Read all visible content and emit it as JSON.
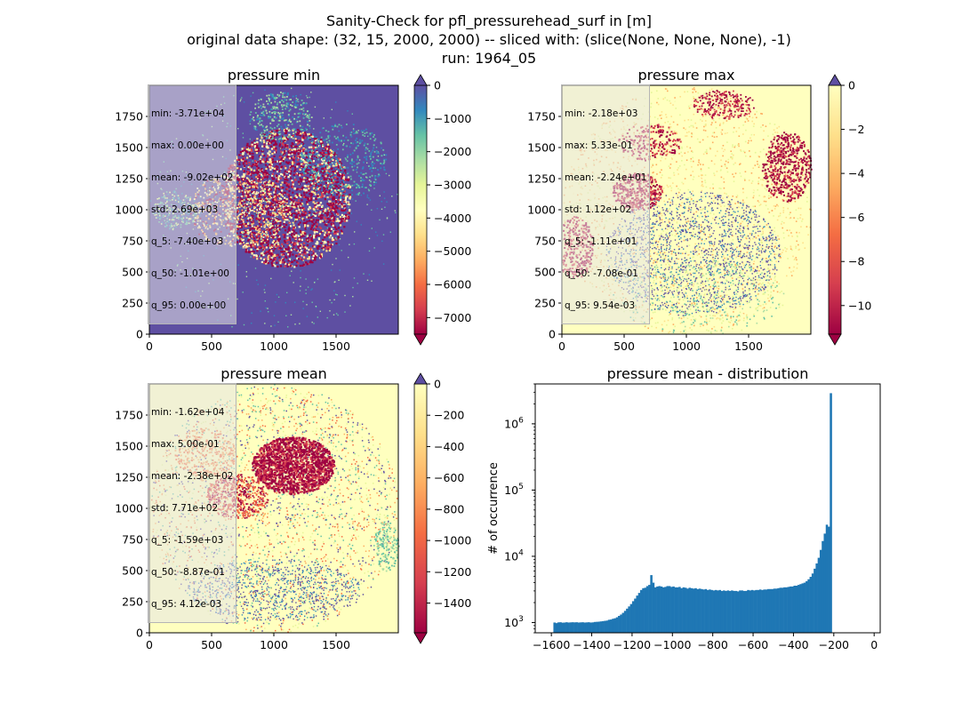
{
  "figure": {
    "title_lines": [
      "Sanity-Check for pfl_pressurehead_surf in [m]",
      "original data shape: (32, 15, 2000, 2000) -- sliced with: (slice(None, None, None), -1)",
      "run: 1964_05"
    ]
  },
  "colors": {
    "spectral": [
      "#9e0142",
      "#d53e4f",
      "#f46d43",
      "#fdae61",
      "#fee08b",
      "#ffffbf",
      "#e6f598",
      "#abdda4",
      "#66c2a5",
      "#3288bd",
      "#5e4fa2"
    ],
    "histogram_bar": "#1f77b4"
  },
  "chart_data": [
    {
      "type": "heatmap",
      "title": "pressure min",
      "xlim": [
        0,
        2000
      ],
      "ylim": [
        0,
        2000
      ],
      "xticks": [
        "0",
        "500",
        "1000",
        "1500"
      ],
      "yticks": [
        "0",
        "250",
        "500",
        "750",
        "1000",
        "1250",
        "1500",
        "1750"
      ],
      "colorbar": {
        "range": [
          -7500,
          0
        ],
        "ticks": [
          "0",
          "−1000",
          "−2000",
          "−3000",
          "−4000",
          "−5000",
          "−6000",
          "−7000"
        ],
        "extend": "both"
      },
      "stats": [
        "min: -3.71e+04",
        "max: 0.00e+00",
        "mean: -9.02e+02",
        "std: 2.69e+03",
        "q_5: -7.40e+03",
        "q_50: -1.01e+00",
        "q_95: 0.00e+00"
      ]
    },
    {
      "type": "heatmap",
      "title": "pressure max",
      "xlim": [
        0,
        2000
      ],
      "ylim": [
        0,
        2000
      ],
      "xticks": [
        "0",
        "500",
        "1000",
        "1500"
      ],
      "yticks": [
        "0",
        "250",
        "500",
        "750",
        "1000",
        "1250",
        "1500",
        "1750"
      ],
      "colorbar": {
        "range": [
          -11.3,
          0
        ],
        "ticks": [
          "0",
          "−2",
          "−4",
          "−6",
          "−8",
          "−10"
        ],
        "extend": "both"
      },
      "stats": [
        "min: -2.18e+03",
        "max: 5.33e-01",
        "mean: -2.24e+01",
        "std: 1.12e+02",
        "q_5: -1.11e+01",
        "q_50: -7.08e-01",
        "q_95: 9.54e-03"
      ]
    },
    {
      "type": "heatmap",
      "title": "pressure mean",
      "xlim": [
        0,
        2000
      ],
      "ylim": [
        0,
        2000
      ],
      "xticks": [
        "0",
        "500",
        "1000",
        "1500"
      ],
      "yticks": [
        "0",
        "250",
        "500",
        "750",
        "1000",
        "1250",
        "1500",
        "1750"
      ],
      "colorbar": {
        "range": [
          -1590,
          0
        ],
        "ticks": [
          "0",
          "−200",
          "−400",
          "−600",
          "−800",
          "−1000",
          "−1200",
          "−1400"
        ],
        "extend": "both"
      },
      "stats": [
        "min: -1.62e+04",
        "max: 5.00e-01",
        "mean: -2.38e+02",
        "std: 7.71e+02",
        "q_5: -1.59e+03",
        "q_50: -8.87e-01",
        "q_95: 4.12e-03"
      ]
    },
    {
      "type": "bar",
      "title": "pressure mean - distribution",
      "ylabel": "# of occurrence",
      "xlim": [
        -1680,
        30
      ],
      "ylim_log": [
        700,
        4000000
      ],
      "xticks": [
        {
          "v": -1600,
          "label": "−1600"
        },
        {
          "v": -1400,
          "label": "−1400"
        },
        {
          "v": -1200,
          "label": "−1200"
        },
        {
          "v": -1000,
          "label": "−1000"
        },
        {
          "v": -800,
          "label": "−800"
        },
        {
          "v": -600,
          "label": "−600"
        },
        {
          "v": -400,
          "label": "−400"
        },
        {
          "v": -200,
          "label": "−200"
        },
        {
          "v": 0,
          "label": "0"
        }
      ],
      "yticks": [
        {
          "v": 1000,
          "base": "10",
          "exp": "3"
        },
        {
          "v": 10000,
          "base": "10",
          "exp": "4"
        },
        {
          "v": 100000,
          "base": "10",
          "exp": "5"
        },
        {
          "v": 1000000,
          "base": "10",
          "exp": "6"
        }
      ],
      "bin_start": -1590,
      "bin_width": 10,
      "counts": [
        1000,
        980,
        1005,
        1010,
        995,
        1000,
        1010,
        1000,
        1005,
        1010,
        1005,
        1010,
        1000,
        1005,
        1010,
        1000,
        1005,
        1010,
        1000,
        1005,
        1020,
        1025,
        1030,
        1040,
        1050,
        1060,
        1070,
        1100,
        1110,
        1140,
        1160,
        1200,
        1260,
        1320,
        1400,
        1500,
        1620,
        1750,
        1900,
        2100,
        2300,
        2550,
        2800,
        3100,
        3300,
        3350,
        3550,
        3700,
        5200,
        4000,
        3400,
        3500,
        3550,
        3500,
        3400,
        3450,
        3550,
        3550,
        3450,
        3500,
        3400,
        3400,
        3450,
        3300,
        3400,
        3350,
        3250,
        3350,
        3300,
        3250,
        3300,
        3200,
        3250,
        3200,
        3150,
        3200,
        3100,
        3150,
        3100,
        3050,
        3100,
        3050,
        3100,
        3000,
        3050,
        3000,
        3050,
        3000,
        3050,
        3000,
        3000,
        2950,
        3050,
        3050,
        3000,
        3000,
        3100,
        3050,
        3100,
        3050,
        3100,
        3100,
        3150,
        3100,
        3150,
        3150,
        3200,
        3200,
        3200,
        3250,
        3250,
        3300,
        3350,
        3350,
        3400,
        3400,
        3450,
        3500,
        3500,
        3600,
        3600,
        3700,
        3800,
        3900,
        4000,
        4200,
        4500,
        4900,
        5500,
        6500,
        7800,
        9500,
        12500,
        17000,
        22000,
        30000,
        28000,
        2900000
      ]
    }
  ]
}
